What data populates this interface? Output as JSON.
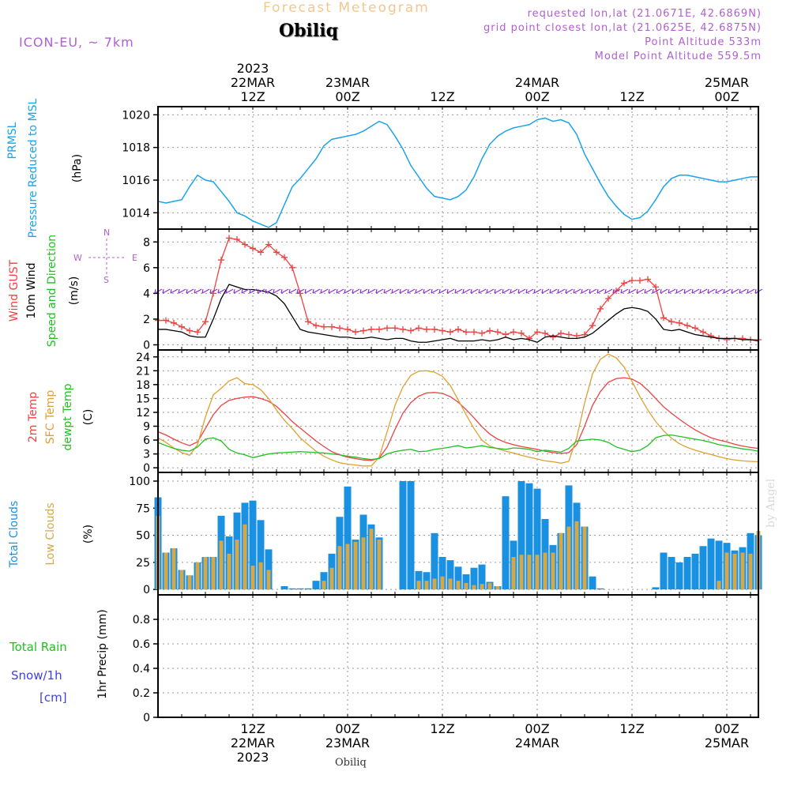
{
  "header": {
    "title": "Forecast Meteogram",
    "title_color": "#f0c890",
    "station": "Obiliq",
    "model": "ICON-EU, ~ 7km",
    "info": [
      "requested lon,lat (21.0671E, 42.6869N)",
      "grid point closest lon,lat (21.0625E, 42.6875N)",
      "Point Altitude 533m",
      "Model Point Altitude 559.5m"
    ],
    "info_color": "#b060d0",
    "model_color": "#b060d0"
  },
  "time_axis_top": [
    {
      "line1": "2023",
      "line2": "22MAR",
      "line3": "12Z",
      "hour": 12
    },
    {
      "line1": "",
      "line2": "23MAR",
      "line3": "00Z",
      "hour": 24
    },
    {
      "line1": "",
      "line2": "",
      "line3": "12Z",
      "hour": 36
    },
    {
      "line1": "",
      "line2": "24MAR",
      "line3": "00Z",
      "hour": 48
    },
    {
      "line1": "",
      "line2": "",
      "line3": "12Z",
      "hour": 60
    },
    {
      "line1": "",
      "line2": "25MAR",
      "line3": "00Z",
      "hour": 72
    }
  ],
  "time_axis_bottom": [
    {
      "line1": "12Z",
      "line2": "22MAR",
      "line3": "2023",
      "hour": 12
    },
    {
      "line1": "00Z",
      "line2": "23MAR",
      "line3": "",
      "hour": 24
    },
    {
      "line1": "12Z",
      "line2": "",
      "line3": "",
      "hour": 36
    },
    {
      "line1": "00Z",
      "line2": "24MAR",
      "line3": "",
      "hour": 48
    },
    {
      "line1": "12Z",
      "line2": "",
      "line3": "",
      "hour": 60
    },
    {
      "line1": "00Z",
      "line2": "25MAR",
      "line3": "",
      "hour": 72
    }
  ],
  "panel_labels": {
    "pressure": {
      "name": "PRMSL",
      "desc": "Pressure Reduced to MSL",
      "unit": "(hPa)"
    },
    "wind": {
      "gust": "Wind GUST",
      "wind10": "10m Wind",
      "dir": "Speed and Direction",
      "unit": "(m/s)",
      "compass_n": "N",
      "compass_s": "S",
      "compass_w": "W",
      "compass_e": "E"
    },
    "temp": {
      "t2m": "2m Temp",
      "sfc": "SFC Temp",
      "dew": "dewpt Temp",
      "unit": "(C)"
    },
    "clouds": {
      "total": "Total Clouds",
      "low": "Low Clouds",
      "unit": "(%)"
    },
    "precip": {
      "rain": "Total  Rain",
      "snow": "Snow/1h",
      "cm": "[cm]",
      "unit": "1hr Precip (mm)"
    }
  },
  "footer": {
    "station": "Obiliq",
    "watermark": "by Angel"
  },
  "colors": {
    "pressure": "#1aa3e8",
    "gust": "#f04040",
    "wind10": "#000000",
    "t2m": "#f04040",
    "sfc": "#e0a030",
    "dew": "#20c020",
    "total_cloud": "#1a90e0",
    "low_cloud": "#d4a84a",
    "rain": "#20c020",
    "snow": "#4040e0"
  },
  "chart_data": [
    {
      "type": "line",
      "name": "pressure",
      "xunit": "hours since 2023-03-22 00Z",
      "x": [
        0,
        1,
        2,
        3,
        4,
        5,
        6,
        7,
        8,
        9,
        10,
        11,
        12,
        13,
        14,
        15,
        16,
        17,
        18,
        19,
        20,
        21,
        22,
        23,
        24,
        25,
        26,
        27,
        28,
        29,
        30,
        31,
        32,
        33,
        34,
        35,
        36,
        37,
        38,
        39,
        40,
        41,
        42,
        43,
        44,
        45,
        46,
        47,
        48,
        49,
        50,
        51,
        52,
        53,
        54,
        55,
        56,
        57,
        58,
        59,
        60,
        61,
        62,
        63,
        64,
        65,
        66,
        67,
        68,
        69,
        70,
        71,
        72,
        73,
        74,
        75,
        76
      ],
      "series": [
        {
          "values": [
            1014.7,
            1014.6,
            1014.7,
            1014.8,
            1015.6,
            1016.3,
            1016.0,
            1015.9,
            1015.3,
            1014.7,
            1014.0,
            1013.8,
            1013.5,
            1013.3,
            1013.1,
            1013.4,
            1014.5,
            1015.6,
            1016.1,
            1016.7,
            1017.3,
            1018.1,
            1018.5,
            1018.6,
            1018.7,
            1018.8,
            1019.0,
            1019.3,
            1019.6,
            1019.4,
            1018.7,
            1017.9,
            1016.9,
            1016.2,
            1015.5,
            1015.0,
            1014.9,
            1014.8,
            1015.0,
            1015.4,
            1016.2,
            1017.3,
            1018.2,
            1018.7,
            1019.0,
            1019.2,
            1019.3,
            1019.4,
            1019.7,
            1019.8,
            1019.6,
            1019.7,
            1019.5,
            1018.8,
            1017.6,
            1016.7,
            1015.8,
            1015.0,
            1014.4,
            1013.9,
            1013.6,
            1013.7,
            1014.1,
            1014.8,
            1015.6,
            1016.1,
            1016.3,
            1016.3,
            1016.2,
            1016.1,
            1016.0,
            1015.9,
            1015.9,
            1016.0,
            1016.1,
            1016.2,
            1016.2
          ]
        }
      ],
      "ylim": [
        1013,
        1020.5
      ],
      "yticks": [
        1014,
        1016,
        1018,
        1020
      ],
      "grid": true
    },
    {
      "type": "line",
      "name": "wind",
      "xunit": "hours since 2023-03-22 00Z",
      "x": [
        0,
        1,
        2,
        3,
        4,
        5,
        6,
        7,
        8,
        9,
        10,
        11,
        12,
        13,
        14,
        15,
        16,
        17,
        18,
        19,
        20,
        21,
        22,
        23,
        24,
        25,
        26,
        27,
        28,
        29,
        30,
        31,
        32,
        33,
        34,
        35,
        36,
        37,
        38,
        39,
        40,
        41,
        42,
        43,
        44,
        45,
        46,
        47,
        48,
        49,
        50,
        51,
        52,
        53,
        54,
        55,
        56,
        57,
        58,
        59,
        60,
        61,
        62,
        63,
        64,
        65,
        66,
        67,
        68,
        69,
        70,
        71,
        72,
        73,
        74,
        75,
        76
      ],
      "series": [
        {
          "name": "Wind GUST",
          "values": [
            1.9,
            1.9,
            1.7,
            1.4,
            1.1,
            1.0,
            1.8,
            4.0,
            6.6,
            8.3,
            8.2,
            7.8,
            7.5,
            7.2,
            7.8,
            7.2,
            6.8,
            6.0,
            4.0,
            1.8,
            1.5,
            1.4,
            1.4,
            1.3,
            1.2,
            1.0,
            1.1,
            1.2,
            1.2,
            1.3,
            1.3,
            1.2,
            1.1,
            1.3,
            1.2,
            1.2,
            1.1,
            1.0,
            1.2,
            1.0,
            1.0,
            0.9,
            1.1,
            1.0,
            0.8,
            1.0,
            0.9,
            0.5,
            1.0,
            0.9,
            0.6,
            0.9,
            0.8,
            0.7,
            0.8,
            1.5,
            2.8,
            3.6,
            4.2,
            4.8,
            5.0,
            5.0,
            5.1,
            4.5,
            2.1,
            1.8,
            1.7,
            1.5,
            1.3,
            1.0,
            0.7,
            0.5,
            0.4,
            0.5,
            0.5,
            0.4,
            0.4
          ]
        },
        {
          "name": "10m Wind",
          "values": [
            1.2,
            1.2,
            1.1,
            1.0,
            0.7,
            0.6,
            0.6,
            2.0,
            3.6,
            4.7,
            4.5,
            4.3,
            4.3,
            4.2,
            4.1,
            3.8,
            3.2,
            2.2,
            1.2,
            1.0,
            0.9,
            0.8,
            0.7,
            0.6,
            0.6,
            0.5,
            0.5,
            0.6,
            0.5,
            0.4,
            0.5,
            0.5,
            0.3,
            0.2,
            0.2,
            0.3,
            0.4,
            0.5,
            0.3,
            0.3,
            0.3,
            0.4,
            0.3,
            0.4,
            0.6,
            0.4,
            0.5,
            0.4,
            0.2,
            0.6,
            0.7,
            0.6,
            0.5,
            0.5,
            0.6,
            0.9,
            1.4,
            1.9,
            2.4,
            2.8,
            2.9,
            2.8,
            2.6,
            2.0,
            1.2,
            1.1,
            1.2,
            1.0,
            0.8,
            0.7,
            0.6,
            0.5,
            0.5,
            0.5,
            0.4,
            0.4,
            0.3
          ]
        }
      ],
      "ylim": [
        -0.4,
        9
      ],
      "yticks": [
        0,
        2,
        4,
        6,
        8
      ],
      "grid": true
    },
    {
      "type": "line",
      "name": "temperature",
      "xunit": "hours since 2023-03-22 00Z",
      "x": [
        0,
        1,
        2,
        3,
        4,
        5,
        6,
        7,
        8,
        9,
        10,
        11,
        12,
        13,
        14,
        15,
        16,
        17,
        18,
        19,
        20,
        21,
        22,
        23,
        24,
        25,
        26,
        27,
        28,
        29,
        30,
        31,
        32,
        33,
        34,
        35,
        36,
        37,
        38,
        39,
        40,
        41,
        42,
        43,
        44,
        45,
        46,
        47,
        48,
        49,
        50,
        51,
        52,
        53,
        54,
        55,
        56,
        57,
        58,
        59,
        60,
        61,
        62,
        63,
        64,
        65,
        66,
        67,
        68,
        69,
        70,
        71,
        72,
        73,
        74,
        75,
        76
      ],
      "series": [
        {
          "name": "2m Temp",
          "values": [
            7.8,
            7.1,
            6.2,
            5.4,
            4.8,
            5.6,
            8.5,
            11.5,
            13.5,
            14.6,
            15.0,
            15.3,
            15.4,
            15.0,
            14.4,
            13.3,
            11.7,
            10.0,
            8.6,
            7.2,
            5.8,
            4.6,
            3.5,
            2.8,
            2.3,
            2.0,
            1.7,
            1.6,
            2.1,
            4.5,
            8.3,
            11.8,
            14.1,
            15.5,
            16.2,
            16.3,
            16.1,
            15.4,
            14.2,
            12.6,
            10.8,
            8.9,
            7.3,
            6.2,
            5.5,
            5.0,
            4.6,
            4.3,
            4.0,
            3.6,
            3.3,
            3.1,
            3.3,
            5.0,
            9.0,
            13.5,
            16.5,
            18.5,
            19.3,
            19.5,
            19.2,
            18.3,
            16.8,
            15.0,
            13.2,
            11.8,
            10.5,
            9.3,
            8.2,
            7.3,
            6.5,
            6.0,
            5.6,
            5.1,
            4.7,
            4.4,
            4.2
          ]
        },
        {
          "name": "SFC Temp",
          "values": [
            6.5,
            5.5,
            4.3,
            3.3,
            2.7,
            5.0,
            11.0,
            15.8,
            17.2,
            18.8,
            19.5,
            18.2,
            18.0,
            16.9,
            15.0,
            12.5,
            10.3,
            8.5,
            6.5,
            5.0,
            3.6,
            2.5,
            1.7,
            1.1,
            0.8,
            0.6,
            0.4,
            0.4,
            2.3,
            7.8,
            13.5,
            17.5,
            20.0,
            20.9,
            21.0,
            20.7,
            19.8,
            17.8,
            14.7,
            11.5,
            8.5,
            6.0,
            4.7,
            4.1,
            3.6,
            3.2,
            2.7,
            2.3,
            1.9,
            1.5,
            1.3,
            1.0,
            1.4,
            6.5,
            14.0,
            20.3,
            23.5,
            24.6,
            23.8,
            21.8,
            18.7,
            15.4,
            12.5,
            10.0,
            8.0,
            6.4,
            5.2,
            4.4,
            3.8,
            3.3,
            2.9,
            2.4,
            2.0,
            1.7,
            1.5,
            1.4,
            1.3
          ]
        },
        {
          "name": "dewpt Temp",
          "values": [
            5.5,
            4.8,
            4.2,
            3.8,
            3.6,
            4.5,
            6.2,
            6.5,
            5.8,
            4.0,
            3.2,
            2.8,
            2.2,
            2.6,
            3.0,
            3.2,
            3.3,
            3.4,
            3.5,
            3.4,
            3.3,
            3.2,
            3.0,
            2.8,
            2.5,
            2.3,
            2.0,
            1.8,
            2.0,
            3.0,
            3.5,
            3.8,
            4.0,
            3.5,
            3.6,
            4.0,
            4.2,
            4.5,
            4.8,
            4.3,
            4.5,
            4.8,
            4.4,
            4.2,
            4.0,
            4.3,
            4.2,
            4.0,
            3.5,
            3.8,
            3.6,
            3.4,
            4.2,
            5.8,
            6.0,
            6.2,
            6.0,
            5.5,
            4.5,
            4.0,
            3.5,
            3.8,
            4.8,
            6.5,
            7.0,
            7.1,
            6.8,
            6.5,
            6.2,
            5.9,
            5.5,
            5.0,
            4.7,
            4.4,
            4.1,
            3.9,
            3.6
          ]
        }
      ],
      "ylim": [
        -1,
        25.5
      ],
      "yticks": [
        0,
        3,
        6,
        9,
        12,
        15,
        18,
        21,
        24
      ],
      "grid": true
    },
    {
      "type": "bar",
      "name": "clouds",
      "xunit": "hours since 2023-03-22 00Z",
      "x": [
        0,
        1,
        2,
        3,
        4,
        5,
        6,
        7,
        8,
        9,
        10,
        11,
        12,
        13,
        14,
        15,
        16,
        17,
        18,
        19,
        20,
        21,
        22,
        23,
        24,
        25,
        26,
        27,
        28,
        29,
        30,
        31,
        32,
        33,
        34,
        35,
        36,
        37,
        38,
        39,
        40,
        41,
        42,
        43,
        44,
        45,
        46,
        47,
        48,
        49,
        50,
        51,
        52,
        53,
        54,
        55,
        56,
        57,
        58,
        59,
        60,
        61,
        62,
        63,
        64,
        65,
        66,
        67,
        68,
        69,
        70,
        71,
        72,
        73,
        74,
        75,
        76
      ],
      "series": [
        {
          "name": "Total Clouds",
          "values": [
            85,
            34,
            38,
            18,
            13,
            25,
            30,
            30,
            68,
            49,
            71,
            80,
            82,
            64,
            37,
            0,
            3,
            1,
            1,
            1,
            8,
            16,
            33,
            67,
            95,
            46,
            69,
            60,
            48,
            0,
            0,
            100,
            100,
            17,
            16,
            52,
            30,
            27,
            21,
            14,
            20,
            23,
            7,
            3,
            86,
            45,
            100,
            98,
            93,
            65,
            41,
            52,
            96,
            80,
            58,
            12,
            1,
            0,
            0,
            0,
            0,
            0,
            0,
            2,
            34,
            30,
            25,
            30,
            33,
            40,
            47,
            45,
            43,
            36,
            39,
            52,
            50
          ]
        },
        {
          "name": "Low Clouds",
          "values": [
            68,
            34,
            38,
            18,
            13,
            25,
            30,
            30,
            45,
            33,
            46,
            60,
            22,
            25,
            18,
            0,
            0,
            0,
            0,
            0,
            0,
            8,
            20,
            40,
            42,
            44,
            48,
            56,
            46,
            0,
            0,
            0,
            0,
            8,
            8,
            10,
            12,
            10,
            8,
            6,
            4,
            5,
            6,
            3,
            0,
            30,
            32,
            32,
            32,
            34,
            34,
            52,
            58,
            63,
            58,
            0,
            0,
            0,
            0,
            0,
            0,
            0,
            0,
            0,
            0,
            0,
            0,
            0,
            0,
            0,
            0,
            8,
            34,
            33,
            34,
            33,
            54
          ]
        }
      ],
      "ylim": [
        -5,
        108
      ],
      "yticks": [
        0,
        25,
        50,
        75,
        100
      ],
      "grid": true
    },
    {
      "type": "bar",
      "name": "precipitation",
      "xunit": "hours since 2023-03-22 00Z",
      "x": [
        0,
        12,
        24,
        36,
        48,
        60,
        72
      ],
      "series": [
        {
          "name": "Total  Rain",
          "values": [
            0,
            0,
            0,
            0,
            0,
            0,
            0
          ]
        },
        {
          "name": "Snow/1h",
          "values": [
            0,
            0,
            0,
            0,
            0,
            0,
            0
          ]
        }
      ],
      "ylim": [
        0,
        1.0
      ],
      "yticks": [
        0,
        0.2,
        0.4,
        0.6,
        0.8
      ],
      "grid": true
    }
  ]
}
